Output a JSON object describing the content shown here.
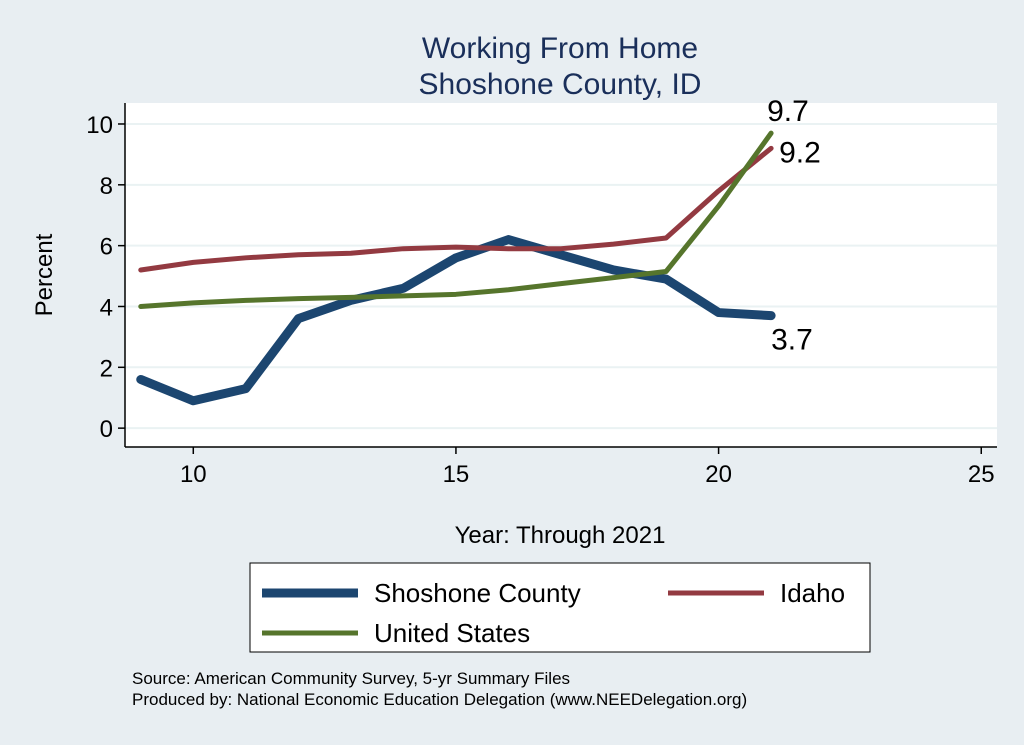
{
  "chart_data": {
    "type": "line",
    "title": "Working From Home",
    "subtitle": "Shoshone County, ID",
    "xlabel": "Year: Through 2021",
    "ylabel": "Percent",
    "xlim": [
      8.7,
      25.3
    ],
    "ylim": [
      -0.62,
      10.69
    ],
    "xticks": [
      10,
      15,
      20,
      25
    ],
    "yticks": [
      0,
      2,
      4,
      6,
      8,
      10
    ],
    "grid": true,
    "legend_position": "bottom",
    "x": [
      9,
      10,
      11,
      12,
      13,
      14,
      15,
      16,
      17,
      18,
      19,
      20,
      21
    ],
    "series": [
      {
        "name": "Shoshone County",
        "color": "#1c4670",
        "width": 9,
        "values": [
          1.6,
          0.9,
          1.3,
          3.6,
          4.2,
          4.6,
          5.6,
          6.2,
          5.7,
          5.2,
          4.9,
          3.8,
          3.7
        ],
        "end_label": "3.7"
      },
      {
        "name": "Idaho",
        "color": "#933a41",
        "width": 5,
        "values": [
          5.2,
          5.45,
          5.6,
          5.7,
          5.75,
          5.9,
          5.95,
          5.9,
          5.9,
          6.05,
          6.25,
          7.8,
          9.2
        ],
        "end_label": "9.2"
      },
      {
        "name": "United States",
        "color": "#56752c",
        "width": 5,
        "values": [
          4.0,
          4.12,
          4.2,
          4.26,
          4.3,
          4.35,
          4.4,
          4.55,
          4.75,
          4.95,
          5.15,
          7.3,
          9.7
        ],
        "end_label": "9.7"
      }
    ]
  },
  "notes": {
    "source": "Source: American Community Survey, 5-yr Summary Files",
    "produced": "Produced by: National Economic Education Delegation (www.NEEDelegation.org)"
  }
}
